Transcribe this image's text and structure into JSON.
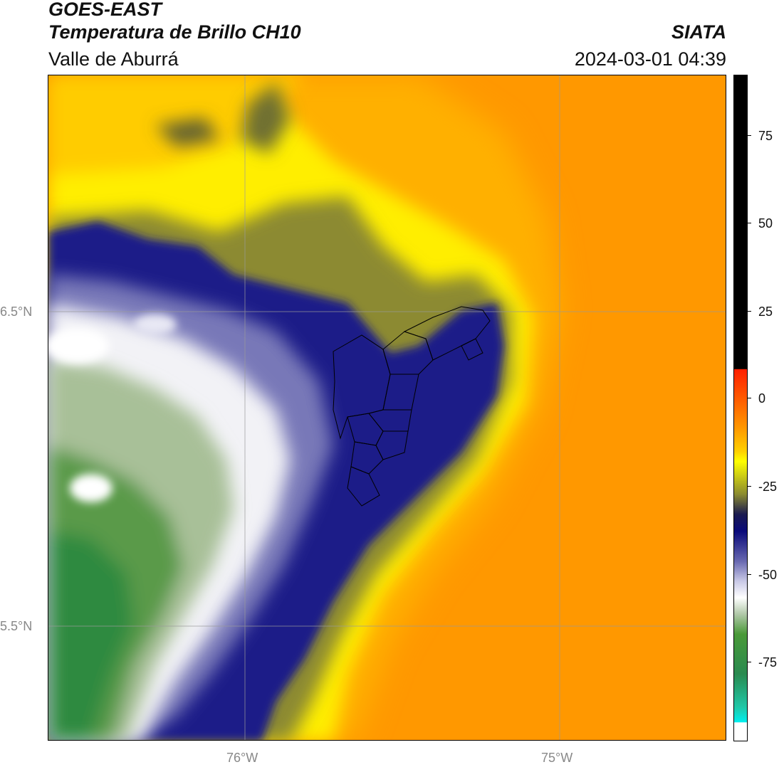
{
  "header": {
    "satellite": "GOES-EAST",
    "product": "Temperatura de Brillo CH10",
    "region": "Valle de Aburrá",
    "organization": "SIATA",
    "datetime": "2024-03-01 04:39"
  },
  "map": {
    "lat_labels": [
      "6.5°N",
      "5.5°N"
    ],
    "lon_labels": [
      "76°W",
      "75°W"
    ],
    "graticule": true,
    "field": "brightness temperature",
    "features": [
      "cloud-top-cold-region-west",
      "valle-de-aburra-municipal-boundaries"
    ]
  },
  "colorbar": {
    "tick_labels": [
      "75",
      "50",
      "25",
      "0",
      "-25",
      "-50",
      "-75"
    ],
    "range": [
      -95,
      92
    ],
    "colors": {
      "warmest": "#000000",
      "red": "#ff2000",
      "orange": "#ff8c00",
      "yellow": "#ffff00",
      "olive": "#5a5a28",
      "navy": "#0a0a78",
      "lavender": "#c8c8e6",
      "white": "#ffffff",
      "green": "#3c8c28",
      "teal": "#1ec8a0",
      "cyan": "#00e6e6"
    }
  }
}
